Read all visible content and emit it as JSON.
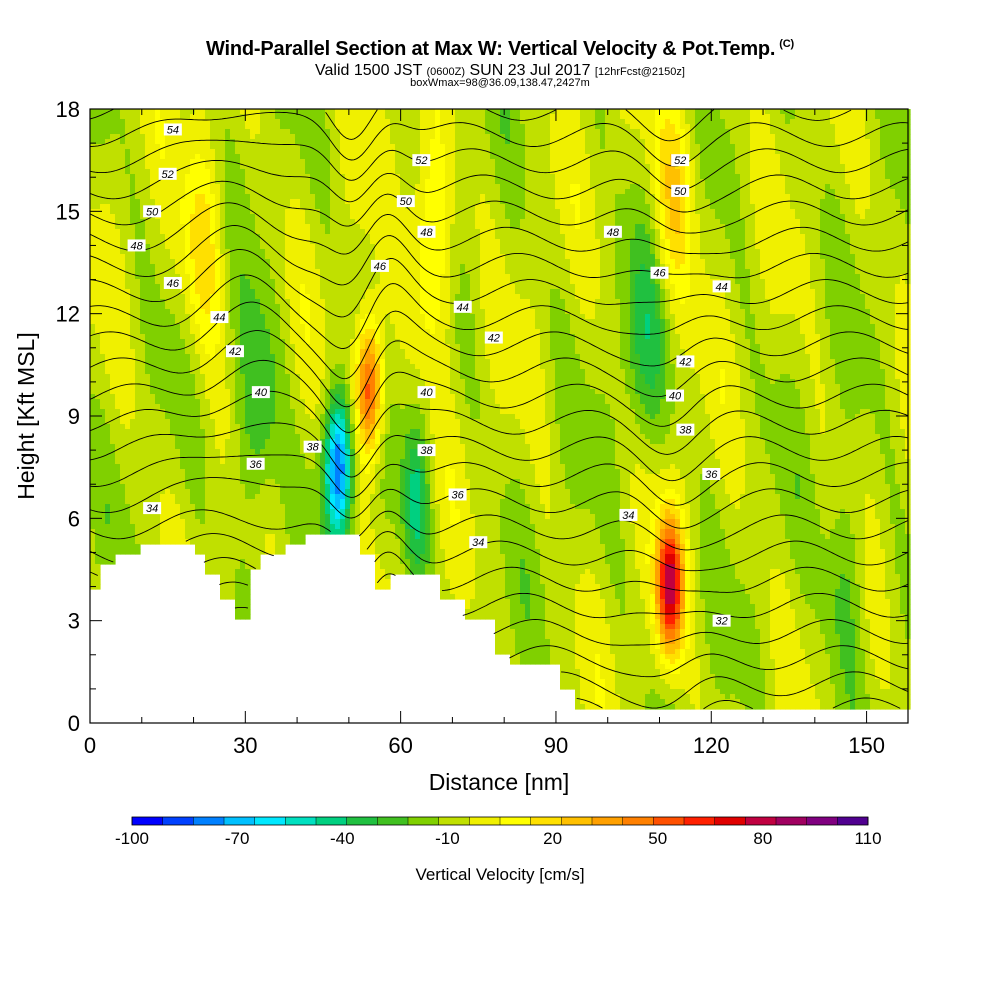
{
  "titles": {
    "main": "Wind-Parallel Section at Max W: Vertical Velocity & Pot.Temp.",
    "copyright": "(C)",
    "valid_a": "Valid 1500 JST",
    "valid_zulu": "(0600Z)",
    "valid_b": "SUN 23 Jul 2017",
    "forecast": "[12hrFcst@2150z]",
    "box": "boxWmax=98@36.09,138.47,2427m"
  },
  "chart_data": {
    "type": "heatmap",
    "xlabel": "Distance [nm]",
    "ylabel": "Height [Kft MSL]",
    "xlim": [
      0,
      158
    ],
    "ylim": [
      0,
      18
    ],
    "x_ticks": [
      "0",
      "30",
      "60",
      "90",
      "120",
      "150"
    ],
    "x_tick_values": [
      0,
      30,
      60,
      90,
      120,
      150
    ],
    "y_ticks": [
      "0",
      "3",
      "6",
      "9",
      "12",
      "15",
      "18"
    ],
    "y_tick_values": [
      0,
      3,
      6,
      9,
      12,
      15,
      18
    ],
    "colorbar": {
      "title": "Vertical Velocity [cm/s]",
      "labels": [
        "-100",
        "-70",
        "-40",
        "-10",
        "20",
        "50",
        "80",
        "110"
      ],
      "label_values": [
        -100,
        -70,
        -40,
        -10,
        20,
        50,
        80,
        110
      ],
      "colors": [
        "#0000ff",
        "#0040ff",
        "#0080ff",
        "#00c0ff",
        "#00e8ff",
        "#00e0c0",
        "#00d080",
        "#20c040",
        "#40c020",
        "#80d000",
        "#c0e000",
        "#f0f000",
        "#ffff00",
        "#ffe000",
        "#ffc000",
        "#ffa000",
        "#ff8000",
        "#ff5000",
        "#ff2000",
        "#e00000",
        "#c00040",
        "#a00060",
        "#800080",
        "#500090"
      ]
    },
    "w_features": [
      {
        "x": 54,
        "y": 9.8,
        "w": 80,
        "label": "updraft"
      },
      {
        "x": 112,
        "y": 4.0,
        "w": 98,
        "label": "updraft"
      },
      {
        "x": 48,
        "y": 7.5,
        "w": -85,
        "label": "downdraft"
      },
      {
        "x": 63,
        "y": 6.5,
        "w": -40,
        "label": "downdraft"
      },
      {
        "x": 22,
        "y": 14,
        "w": 30,
        "label": "band"
      },
      {
        "x": 66,
        "y": 14,
        "w": 35,
        "label": "band"
      },
      {
        "x": 113,
        "y": 15.5,
        "w": 35,
        "label": "band"
      },
      {
        "x": 32,
        "y": 9,
        "w": -30,
        "label": "band"
      },
      {
        "x": 107,
        "y": 11,
        "w": -25,
        "label": "band"
      },
      {
        "x": 146,
        "y": 4,
        "w": -20,
        "label": "band"
      }
    ],
    "theta_levels": [
      32,
      33,
      34,
      35,
      36,
      37,
      38,
      39,
      40,
      41,
      42,
      43,
      44,
      45,
      46,
      47,
      48,
      49,
      50,
      51,
      52,
      53,
      54,
      55
    ],
    "theta_labels": [
      {
        "text": "54",
        "x": 16,
        "y": 17.4
      },
      {
        "text": "52",
        "x": 15,
        "y": 16.1
      },
      {
        "text": "50",
        "x": 12,
        "y": 15.0
      },
      {
        "text": "48",
        "x": 9,
        "y": 14.0
      },
      {
        "text": "46",
        "x": 16,
        "y": 12.9
      },
      {
        "text": "44",
        "x": 25,
        "y": 11.9
      },
      {
        "text": "42",
        "x": 28,
        "y": 10.9
      },
      {
        "text": "40",
        "x": 33,
        "y": 9.7
      },
      {
        "text": "38",
        "x": 43,
        "y": 8.1
      },
      {
        "text": "36",
        "x": 32,
        "y": 7.6
      },
      {
        "text": "34",
        "x": 12,
        "y": 6.3
      },
      {
        "text": "52",
        "x": 64,
        "y": 16.5
      },
      {
        "text": "50",
        "x": 61,
        "y": 15.3
      },
      {
        "text": "48",
        "x": 65,
        "y": 14.4
      },
      {
        "text": "46",
        "x": 56,
        "y": 13.4
      },
      {
        "text": "44",
        "x": 72,
        "y": 12.2
      },
      {
        "text": "42",
        "x": 78,
        "y": 11.3
      },
      {
        "text": "40",
        "x": 65,
        "y": 9.7
      },
      {
        "text": "38",
        "x": 65,
        "y": 8.0
      },
      {
        "text": "36",
        "x": 71,
        "y": 6.7
      },
      {
        "text": "34",
        "x": 75,
        "y": 5.3
      },
      {
        "text": "52",
        "x": 114,
        "y": 16.5
      },
      {
        "text": "50",
        "x": 114,
        "y": 15.6
      },
      {
        "text": "48",
        "x": 101,
        "y": 14.4
      },
      {
        "text": "46",
        "x": 110,
        "y": 13.2
      },
      {
        "text": "44",
        "x": 122,
        "y": 12.8
      },
      {
        "text": "42",
        "x": 115,
        "y": 10.6
      },
      {
        "text": "40",
        "x": 113,
        "y": 9.6
      },
      {
        "text": "38",
        "x": 115,
        "y": 8.6
      },
      {
        "text": "36",
        "x": 120,
        "y": 7.3
      },
      {
        "text": "34",
        "x": 104,
        "y": 6.1
      },
      {
        "text": "32",
        "x": 122,
        "y": 3.0
      }
    ],
    "terrain": [
      [
        0,
        4.0
      ],
      [
        2,
        4.0
      ],
      [
        2,
        4.7
      ],
      [
        5,
        4.7
      ],
      [
        5,
        5.0
      ],
      [
        10,
        5.0
      ],
      [
        10,
        5.3
      ],
      [
        20,
        5.3
      ],
      [
        20,
        5.0
      ],
      [
        22,
        5.0
      ],
      [
        22,
        4.3
      ],
      [
        25,
        4.3
      ],
      [
        25,
        3.6
      ],
      [
        28,
        3.6
      ],
      [
        28,
        3.0
      ],
      [
        31,
        3.0
      ],
      [
        31,
        4.5
      ],
      [
        33,
        4.5
      ],
      [
        33,
        4.9
      ],
      [
        38,
        4.9
      ],
      [
        38,
        5.2
      ],
      [
        42,
        5.2
      ],
      [
        42,
        5.6
      ],
      [
        52,
        5.6
      ],
      [
        52,
        5.0
      ],
      [
        55,
        5.0
      ],
      [
        55,
        4.0
      ],
      [
        58,
        4.0
      ],
      [
        58,
        4.3
      ],
      [
        68,
        4.3
      ],
      [
        68,
        3.6
      ],
      [
        72,
        3.6
      ],
      [
        72,
        3.0
      ],
      [
        78,
        3.0
      ],
      [
        78,
        2.0
      ],
      [
        81,
        2.0
      ],
      [
        81,
        1.7
      ],
      [
        91,
        1.7
      ],
      [
        91,
        1.0
      ],
      [
        94,
        1.0
      ],
      [
        94,
        0.4
      ],
      [
        158,
        0.4
      ]
    ]
  }
}
